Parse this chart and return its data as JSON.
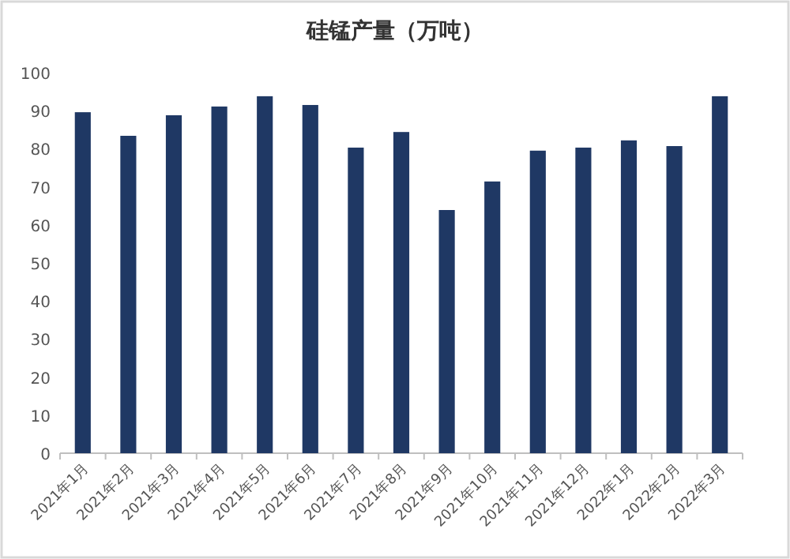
{
  "chart_data": {
    "type": "bar",
    "title": "硅锰产量（万吨）",
    "categories": [
      "2021年1月",
      "2021年2月",
      "2021年3月",
      "2021年4月",
      "2021年5月",
      "2021年6月",
      "2021年7月",
      "2021年8月",
      "2021年9月",
      "2021年10月",
      "2021年11月",
      "2021年12月",
      "2022年1月",
      "2022年2月",
      "2022年3月"
    ],
    "values": [
      89.6,
      83.4,
      88.8,
      91.1,
      93.8,
      91.5,
      80.3,
      84.4,
      63.9,
      71.4,
      79.5,
      80.3,
      82.2,
      80.7,
      93.8
    ],
    "color": "#1f3864",
    "ylim": [
      0,
      100
    ],
    "yticks": [
      0,
      10,
      20,
      30,
      40,
      50,
      60,
      70,
      80,
      90,
      100
    ]
  }
}
